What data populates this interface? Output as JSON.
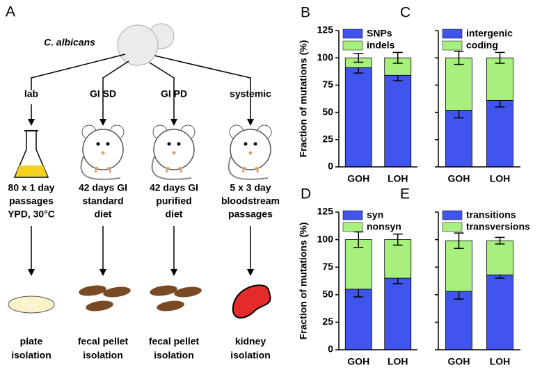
{
  "diagram": {
    "panel": "A",
    "organism": "C. albicans",
    "branches": [
      {
        "label": "lab",
        "condition": [
          "80 x 1 day",
          "passages",
          "YPD, 30°C"
        ],
        "outcome": [
          "plate",
          "isolation"
        ]
      },
      {
        "label": "GI SD",
        "condition": [
          "42 days GI",
          "standard",
          "diet"
        ],
        "outcome": [
          "fecal pellet",
          "isolation"
        ]
      },
      {
        "label": "GI PD",
        "condition": [
          "42 days GI",
          "purified",
          "diet"
        ],
        "outcome": [
          "fecal pellet",
          "isolation"
        ]
      },
      {
        "label": "systemic",
        "condition": [
          "5 x 3 day",
          "bloodstream",
          "passages"
        ],
        "outcome": [
          "kidney",
          "isolation"
        ]
      }
    ]
  },
  "chart_data": [
    {
      "type": "stacked-bar",
      "panel": "B",
      "ylabel": "Fraction of mutations (%)",
      "categories": [
        "GOH",
        "LOH"
      ],
      "series": [
        {
          "name": "SNPs",
          "color": "#3f55ee",
          "values": [
            91,
            84
          ],
          "errors": [
            5,
            5
          ]
        },
        {
          "name": "indels",
          "color": "#a8f07e",
          "values": [
            9,
            16
          ],
          "errors": [
            4,
            5
          ]
        }
      ],
      "ylim": [
        0,
        125
      ],
      "yticks": [
        0,
        25,
        50,
        75,
        100,
        125
      ],
      "show_tick_labels": true,
      "legend": "top-left"
    },
    {
      "type": "stacked-bar",
      "panel": "C",
      "categories": [
        "GOH",
        "LOH"
      ],
      "series": [
        {
          "name": "intergenic",
          "color": "#3f55ee",
          "values": [
            52,
            61
          ],
          "errors": [
            7,
            6
          ]
        },
        {
          "name": "coding",
          "color": "#a8f07e",
          "values": [
            48,
            39
          ],
          "errors": [
            6,
            5
          ]
        }
      ],
      "ylim": [
        0,
        125
      ],
      "yticks": [
        0,
        25,
        50,
        75,
        100,
        125
      ],
      "show_tick_labels": false,
      "legend": "top-left"
    },
    {
      "type": "stacked-bar",
      "panel": "D",
      "ylabel": "Fraction of mutations (%)",
      "categories": [
        "GOH",
        "LOH"
      ],
      "series": [
        {
          "name": "syn",
          "color": "#3f55ee",
          "values": [
            55,
            65
          ],
          "errors": [
            7,
            5
          ]
        },
        {
          "name": "nonsyn",
          "color": "#a8f07e",
          "values": [
            45,
            35
          ],
          "errors": [
            7,
            5
          ]
        }
      ],
      "ylim": [
        0,
        125
      ],
      "yticks": [
        0,
        25,
        50,
        75,
        100,
        125
      ],
      "show_tick_labels": true,
      "legend": "top-left"
    },
    {
      "type": "stacked-bar",
      "panel": "E",
      "categories": [
        "GOH",
        "LOH"
      ],
      "series": [
        {
          "name": "transitions",
          "color": "#3f55ee",
          "values": [
            53,
            68
          ],
          "errors": [
            7,
            3
          ]
        },
        {
          "name": "transversions",
          "color": "#a8f07e",
          "values": [
            46,
            31
          ],
          "errors": [
            7,
            3
          ]
        }
      ],
      "ylim": [
        0,
        125
      ],
      "yticks": [
        0,
        25,
        50,
        75,
        100,
        125
      ],
      "show_tick_labels": false,
      "legend": "top-left"
    }
  ]
}
